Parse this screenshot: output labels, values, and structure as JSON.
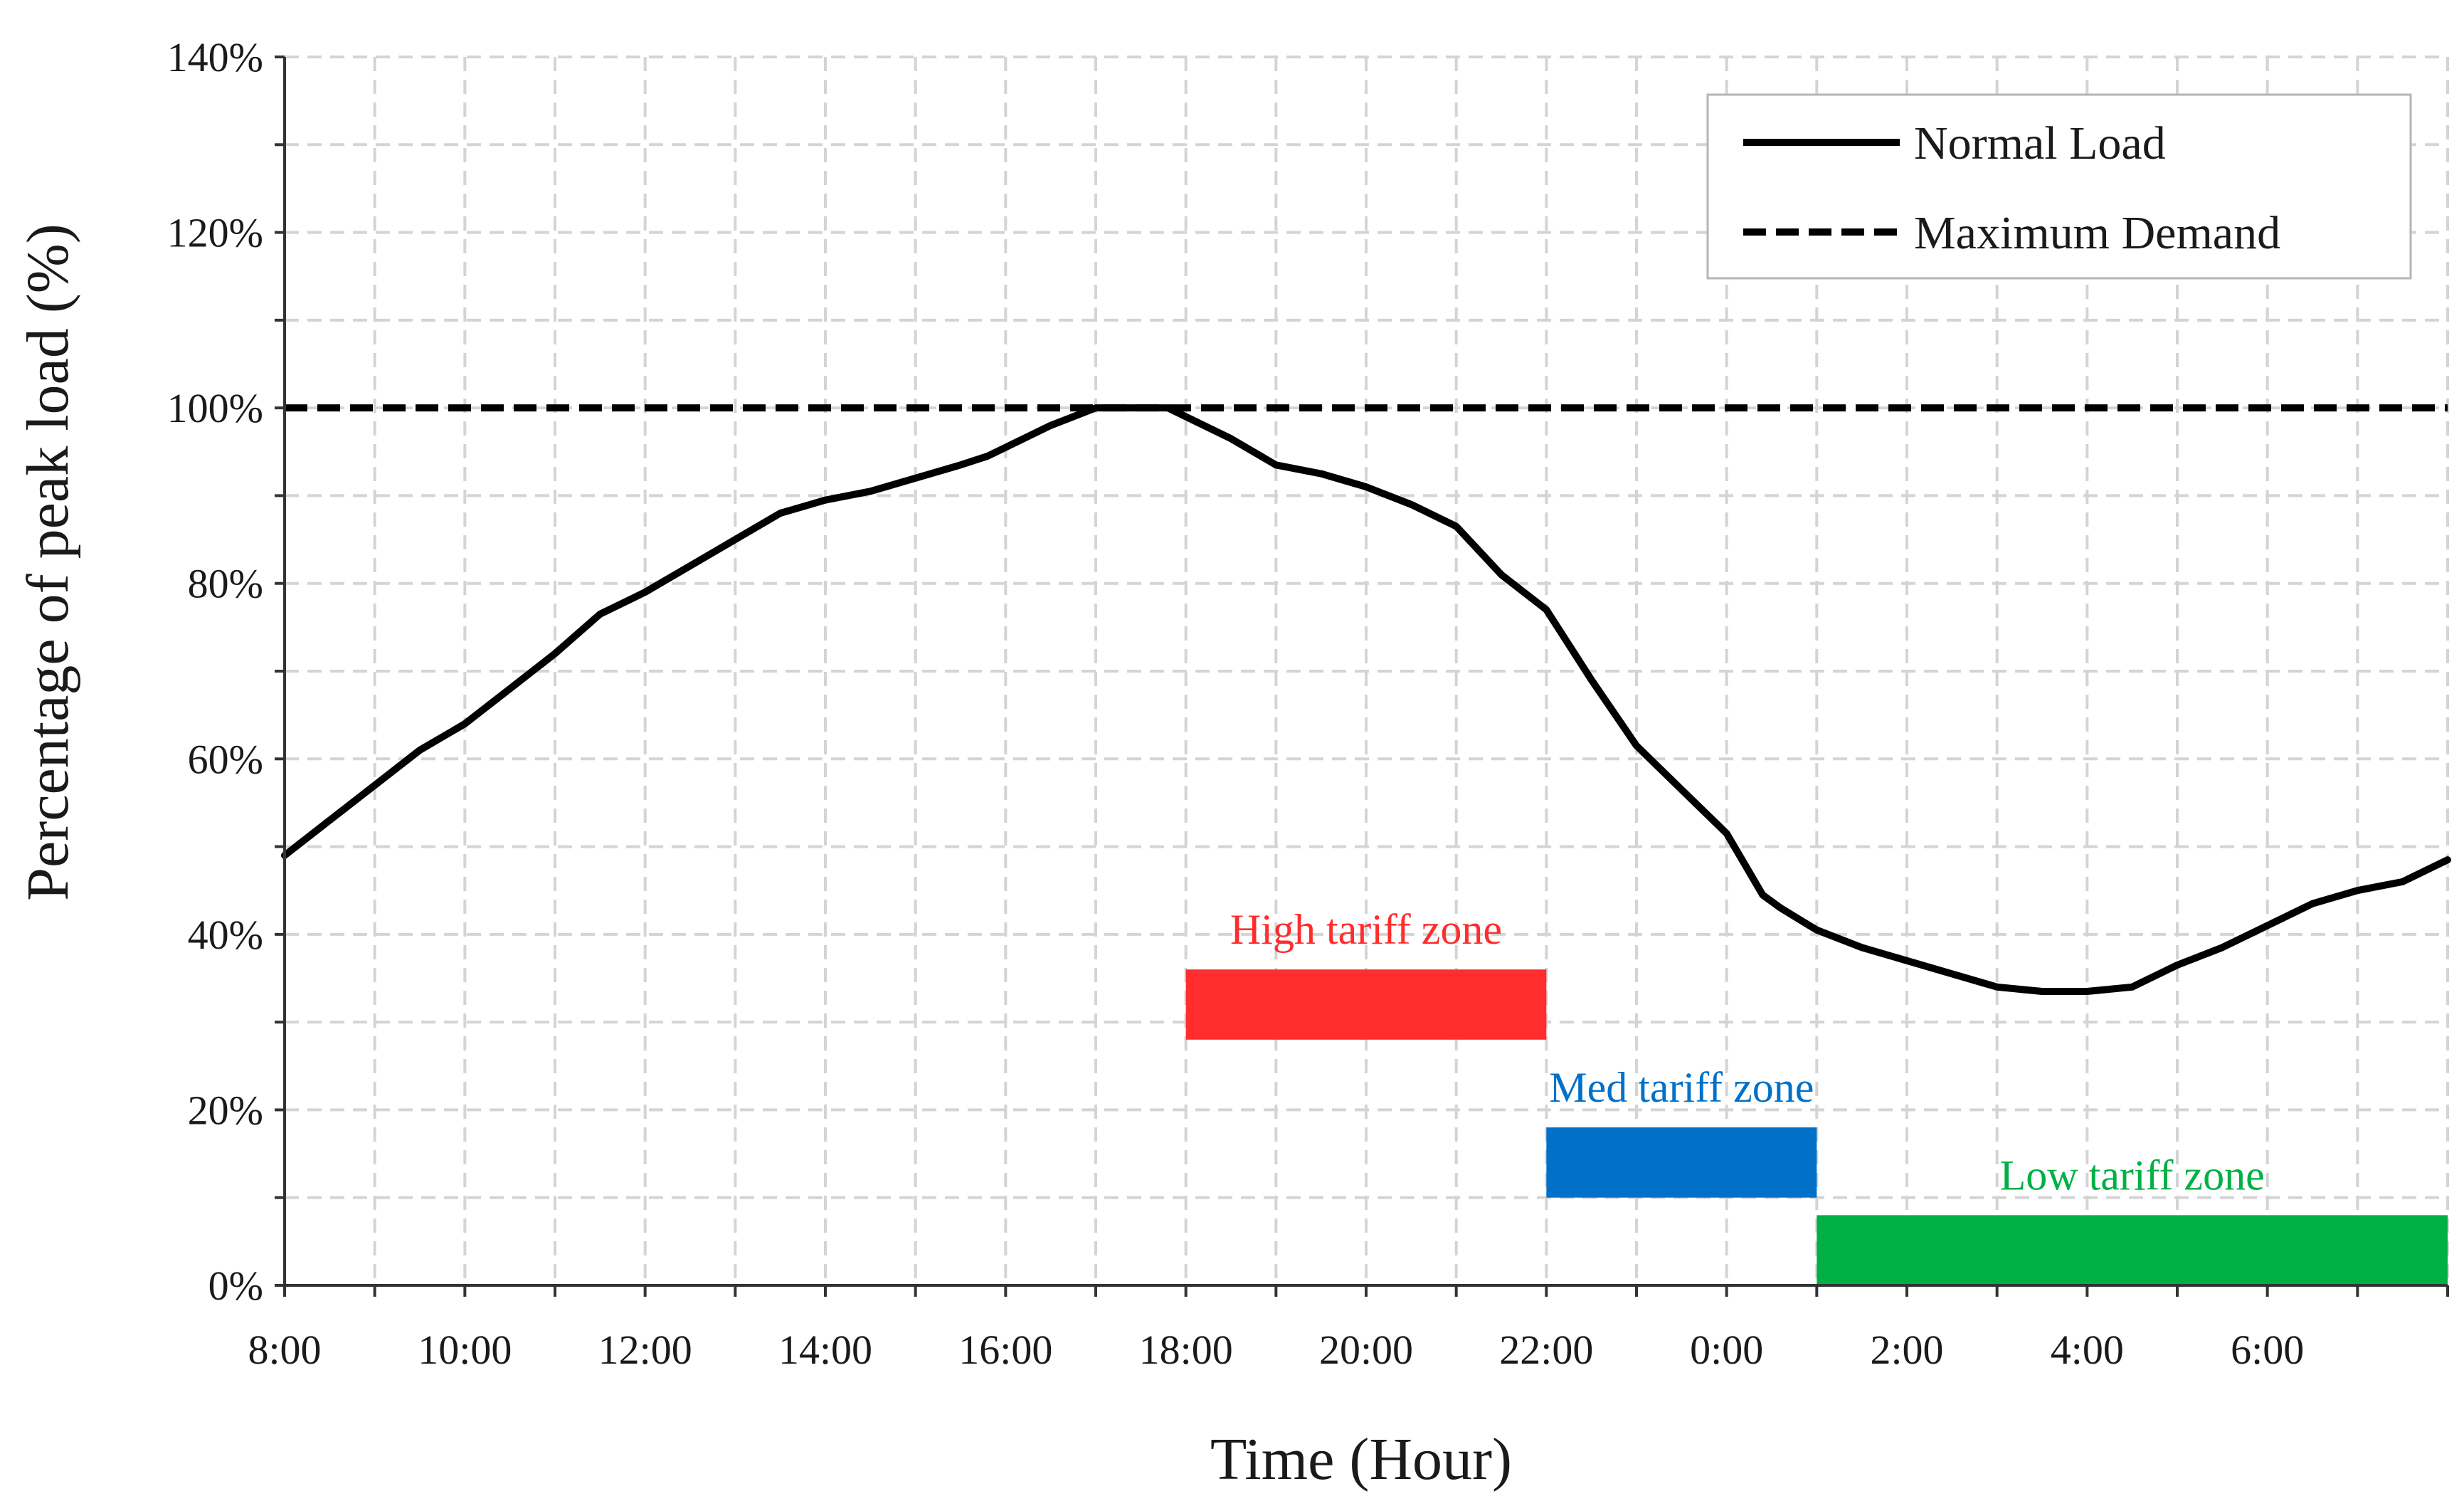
{
  "chart_data": {
    "type": "line",
    "title": "",
    "xlabel": "Time (Hour)",
    "ylabel": "Percentage of peak load (%)",
    "x_domain_hours": [
      8,
      32
    ],
    "ylim": [
      0,
      140
    ],
    "grid": true,
    "x_ticks": [
      {
        "hour": 8,
        "label": "8:00"
      },
      {
        "hour": 10,
        "label": "10:00"
      },
      {
        "hour": 12,
        "label": "12:00"
      },
      {
        "hour": 14,
        "label": "14:00"
      },
      {
        "hour": 16,
        "label": "16:00"
      },
      {
        "hour": 18,
        "label": "18:00"
      },
      {
        "hour": 20,
        "label": "20:00"
      },
      {
        "hour": 22,
        "label": "22:00"
      },
      {
        "hour": 24,
        "label": "0:00"
      },
      {
        "hour": 26,
        "label": "2:00"
      },
      {
        "hour": 28,
        "label": "4:00"
      },
      {
        "hour": 30,
        "label": "6:00"
      }
    ],
    "y_ticks": [
      {
        "value": 0,
        "label": "0%"
      },
      {
        "value": 20,
        "label": "20%"
      },
      {
        "value": 40,
        "label": "40%"
      },
      {
        "value": 60,
        "label": "60%"
      },
      {
        "value": 80,
        "label": "80%"
      },
      {
        "value": 100,
        "label": "100%"
      },
      {
        "value": 120,
        "label": "120%"
      },
      {
        "value": 140,
        "label": "140%"
      }
    ],
    "legend": {
      "position": "top-right",
      "entries": [
        {
          "label": "Normal Load",
          "style": "solid"
        },
        {
          "label": "Maximum Demand",
          "style": "dashed"
        }
      ]
    },
    "series": [
      {
        "name": "Normal Load",
        "style": "solid",
        "color": "#000000",
        "x": [
          8,
          8.5,
          9,
          9.5,
          10,
          10.5,
          11,
          11.5,
          12,
          12.5,
          13,
          13.5,
          14,
          14.5,
          15,
          15.5,
          15.8,
          16,
          16.5,
          17,
          17.5,
          17.8,
          18,
          18.5,
          19,
          19.5,
          20,
          20.5,
          21,
          21.5,
          22,
          22.5,
          23,
          23.5,
          24,
          24.2,
          24.4,
          24.6,
          25,
          25.5,
          26,
          26.5,
          27,
          27.5,
          28,
          28.5,
          29,
          29.5,
          30,
          30.5,
          31,
          31.5,
          32
        ],
        "y": [
          49,
          53,
          57,
          61,
          64,
          68,
          72,
          76.5,
          79,
          82,
          85,
          88,
          89.5,
          90.5,
          92,
          93.5,
          94.5,
          95.5,
          98,
          100,
          100,
          100,
          99,
          96.5,
          93.5,
          92.5,
          91,
          89,
          86.5,
          81,
          77,
          69,
          61.5,
          56.5,
          51.5,
          48,
          44.5,
          43,
          40.5,
          38.5,
          37,
          35.5,
          34,
          33.5,
          33.5,
          34,
          36.5,
          38.5,
          41,
          43.5,
          45,
          46,
          48.5
        ]
      },
      {
        "name": "Maximum Demand",
        "style": "dashed",
        "color": "#000000",
        "x": [
          8,
          32
        ],
        "y": [
          100,
          100
        ]
      }
    ],
    "zones": [
      {
        "label": "High tariff zone",
        "start_hour": 18,
        "end_hour": 22,
        "y_bottom": 28,
        "y_top": 36,
        "color": "#ff2d2d"
      },
      {
        "label": "Med tariff zone",
        "start_hour": 22,
        "end_hour": 25,
        "y_bottom": 10,
        "y_top": 18,
        "color": "#0070c8"
      },
      {
        "label": "Low tariff zone",
        "start_hour": 25,
        "end_hour": 32,
        "y_bottom": 0,
        "y_top": 8,
        "color": "#00b045"
      }
    ]
  }
}
